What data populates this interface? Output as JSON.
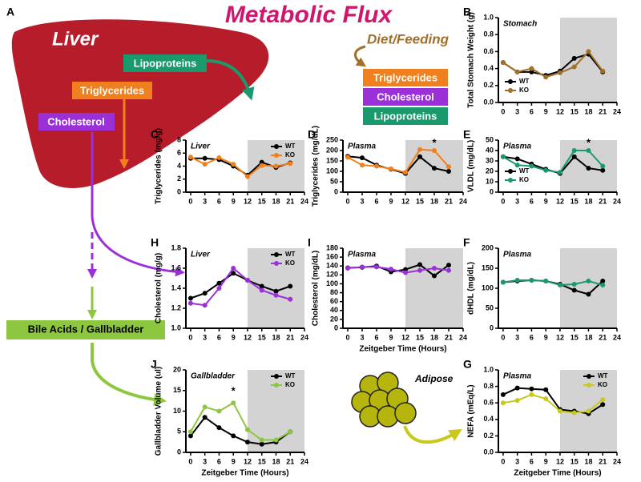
{
  "title": "Metabolic Flux",
  "diagram": {
    "panel": "A",
    "organ": "Liver",
    "liver_labels": [
      "Lipoproteins",
      "Triglycerides",
      "Cholesterol"
    ],
    "diet": "Diet/Feeding",
    "diet_labels": [
      "Triglycerides",
      "Cholesterol",
      "Lipoproteins"
    ],
    "bile": "Bile Acids / Gallbladder",
    "adipose": "Adipose"
  },
  "chart_data": [
    {
      "panel": "B",
      "type": "line",
      "subtitle": "Stomach",
      "ylabel": "Total Stomach Weight (g)",
      "x": [
        0,
        3,
        6,
        9,
        12,
        15,
        18,
        21
      ],
      "xlim": [
        -1,
        24
      ],
      "xticks": [
        0,
        3,
        6,
        9,
        12,
        15,
        18,
        21,
        24
      ],
      "ylim": [
        0,
        1
      ],
      "yticks": [
        {
          "value": 0,
          "label": "0.0"
        },
        0.2,
        0.4,
        0.6,
        0.8,
        {
          "value": 1,
          "label": "1.0"
        }
      ],
      "shade": [
        12,
        24
      ],
      "legend": "lower left",
      "series": [
        {
          "name": "WT",
          "color": "#000000",
          "values": [
            0.47,
            0.36,
            0.36,
            0.32,
            0.37,
            0.52,
            0.57,
            0.36
          ]
        },
        {
          "name": "KO",
          "color": "#a0702a",
          "values": [
            0.47,
            0.36,
            0.4,
            0.3,
            0.35,
            0.42,
            0.6,
            0.37
          ]
        }
      ]
    },
    {
      "panel": "C",
      "type": "line",
      "subtitle": "Liver",
      "ylabel": "Triglycerides (mg/g)",
      "x": [
        0,
        3,
        6,
        9,
        12,
        15,
        18,
        21
      ],
      "xlim": [
        -1,
        24
      ],
      "xticks": [
        0,
        3,
        6,
        9,
        12,
        15,
        18,
        21,
        24
      ],
      "ylim": [
        0,
        8
      ],
      "yticks": [
        0,
        2,
        4,
        6,
        8
      ],
      "shade": [
        12,
        24
      ],
      "legend": "upper right",
      "series": [
        {
          "name": "WT",
          "color": "#000000",
          "values": [
            5.2,
            5.2,
            5.0,
            4.0,
            2.6,
            4.6,
            3.8,
            4.5
          ]
        },
        {
          "name": "KO",
          "color": "#f07f1e",
          "values": [
            5.4,
            4.3,
            5.3,
            4.3,
            2.4,
            4.1,
            4.0,
            4.4
          ]
        }
      ]
    },
    {
      "panel": "D",
      "type": "line",
      "subtitle": "Plasma",
      "ylabel": "Triglycerides (mg/dL)",
      "x": [
        0,
        3,
        6,
        9,
        12,
        15,
        18,
        21
      ],
      "xlim": [
        -1,
        24
      ],
      "xticks": [
        0,
        3,
        6,
        9,
        12,
        15,
        18,
        21,
        24
      ],
      "ylim": [
        0,
        250
      ],
      "yticks": [
        0,
        50,
        100,
        150,
        200,
        250
      ],
      "shade": [
        12,
        24
      ],
      "annotations": [
        {
          "text": "*",
          "x": 18
        }
      ],
      "series": [
        {
          "name": "WT",
          "color": "#000000",
          "values": [
            172,
            165,
            130,
            110,
            90,
            170,
            115,
            100
          ]
        },
        {
          "name": "KO",
          "color": "#f07f1e",
          "values": [
            168,
            130,
            125,
            112,
            95,
            205,
            200,
            122
          ]
        }
      ]
    },
    {
      "panel": "E",
      "type": "line",
      "subtitle": "Plasma",
      "ylabel": "VLDL (mg/dL)",
      "x": [
        0,
        3,
        6,
        9,
        12,
        15,
        18,
        21
      ],
      "xlim": [
        -1,
        24
      ],
      "xticks": [
        0,
        3,
        6,
        9,
        12,
        15,
        18,
        21,
        24
      ],
      "ylim": [
        0,
        50
      ],
      "yticks": [
        0,
        10,
        20,
        30,
        40,
        50
      ],
      "shade": [
        12,
        24
      ],
      "legend": "lower left",
      "annotations": [
        {
          "text": "*",
          "x": 18
        }
      ],
      "series": [
        {
          "name": "WT",
          "color": "#000000",
          "values": [
            34,
            32,
            27,
            22,
            18,
            34,
            23,
            21
          ]
        },
        {
          "name": "KO",
          "color": "#1a9a6c",
          "values": [
            34,
            26,
            25,
            21,
            19,
            40,
            40,
            25
          ]
        }
      ]
    },
    {
      "panel": "H",
      "type": "line",
      "subtitle": "Liver",
      "ylabel": "Cholesterol (mg/g)",
      "x": [
        0,
        3,
        6,
        9,
        12,
        15,
        18,
        21
      ],
      "xlim": [
        -1,
        24
      ],
      "xticks": [
        0,
        3,
        6,
        9,
        12,
        15,
        18,
        21,
        24
      ],
      "ylim": [
        1,
        1.8
      ],
      "yticks": [
        {
          "value": 1,
          "label": "1.0"
        },
        1.2,
        1.4,
        1.6,
        1.8
      ],
      "shade": [
        12,
        24
      ],
      "legend": "upper right",
      "series": [
        {
          "name": "WT",
          "color": "#000000",
          "values": [
            1.3,
            1.35,
            1.45,
            1.55,
            1.48,
            1.42,
            1.37,
            1.42
          ]
        },
        {
          "name": "KO",
          "color": "#9b30d9",
          "values": [
            1.25,
            1.23,
            1.4,
            1.6,
            1.48,
            1.38,
            1.33,
            1.29
          ]
        }
      ]
    },
    {
      "panel": "I",
      "type": "line",
      "subtitle": "Plasma",
      "ylabel": "Cholesterol (mg/dL)",
      "xlabel": "Zeitgeber Time (Hours)",
      "x": [
        0,
        3,
        6,
        9,
        12,
        15,
        18,
        21
      ],
      "xlim": [
        -1,
        24
      ],
      "xticks": [
        0,
        3,
        6,
        9,
        12,
        15,
        18,
        21,
        24
      ],
      "ylim": [
        0,
        180
      ],
      "yticks": [
        0,
        20,
        40,
        60,
        80,
        100,
        120,
        140,
        160,
        180
      ],
      "shade": [
        12,
        24
      ],
      "series": [
        {
          "name": "WT",
          "color": "#000000",
          "values": [
            136,
            137,
            140,
            127,
            132,
            143,
            118,
            142
          ]
        },
        {
          "name": "KO",
          "color": "#9b30d9",
          "values": [
            135,
            138,
            138,
            133,
            125,
            130,
            135,
            130
          ]
        }
      ]
    },
    {
      "panel": "F",
      "type": "line",
      "subtitle": "Plasma",
      "ylabel": "dHDL (mg/dL)",
      "x": [
        0,
        3,
        6,
        9,
        12,
        15,
        18,
        21
      ],
      "xlim": [
        -1,
        24
      ],
      "xticks": [
        0,
        3,
        6,
        9,
        12,
        15,
        18,
        21,
        24
      ],
      "ylim": [
        0,
        200
      ],
      "yticks": [
        0,
        50,
        100,
        150,
        200
      ],
      "shade": [
        12,
        24
      ],
      "series": [
        {
          "name": "WT",
          "color": "#000000",
          "values": [
            115,
            118,
            120,
            118,
            110,
            95,
            85,
            118
          ]
        },
        {
          "name": "KO",
          "color": "#1a9a6c",
          "values": [
            115,
            120,
            120,
            118,
            108,
            110,
            118,
            108
          ]
        }
      ]
    },
    {
      "panel": "J",
      "type": "line",
      "subtitle": "Gallbladder",
      "ylabel": "Gallbladder Volume (ul)",
      "xlabel": "Zeitgeber Time (Hours)",
      "x": [
        0,
        3,
        6,
        9,
        12,
        15,
        18,
        21
      ],
      "xlim": [
        -1,
        24
      ],
      "xticks": [
        0,
        3,
        6,
        9,
        12,
        15,
        18,
        21,
        24
      ],
      "ylim": [
        0,
        20
      ],
      "yticks": [
        0,
        5,
        10,
        15,
        20
      ],
      "shade": [
        12,
        24
      ],
      "legend": "upper right",
      "annotations": [
        {
          "text": "*",
          "x": 9
        }
      ],
      "series": [
        {
          "name": "WT",
          "color": "#000000",
          "values": [
            4,
            8.5,
            6,
            4,
            2.5,
            2,
            2.5,
            5
          ]
        },
        {
          "name": "KO",
          "color": "#8dc63f",
          "values": [
            5,
            11,
            10,
            12,
            5.5,
            3,
            3,
            5
          ]
        }
      ]
    },
    {
      "panel": "G",
      "type": "line",
      "subtitle": "Plasma",
      "ylabel": "NEFA (mEq/L)",
      "xlabel": "Zeitgeber Time (Hours)",
      "x": [
        0,
        3,
        6,
        9,
        12,
        15,
        18,
        21
      ],
      "xlim": [
        -1,
        24
      ],
      "xticks": [
        0,
        3,
        6,
        9,
        12,
        15,
        18,
        21,
        24
      ],
      "ylim": [
        0,
        1
      ],
      "yticks": [
        {
          "value": 0,
          "label": "0.0"
        },
        0.2,
        0.4,
        0.6,
        0.8,
        {
          "value": 1,
          "label": "1.0"
        }
      ],
      "shade": [
        12,
        24
      ],
      "legend": "upper right",
      "series": [
        {
          "name": "WT",
          "color": "#000000",
          "values": [
            0.7,
            0.78,
            0.77,
            0.76,
            0.52,
            0.5,
            0.47,
            0.58
          ]
        },
        {
          "name": "KO",
          "color": "#c8c81e",
          "values": [
            0.6,
            0.63,
            0.7,
            0.65,
            0.5,
            0.48,
            0.5,
            0.64
          ]
        }
      ]
    }
  ]
}
